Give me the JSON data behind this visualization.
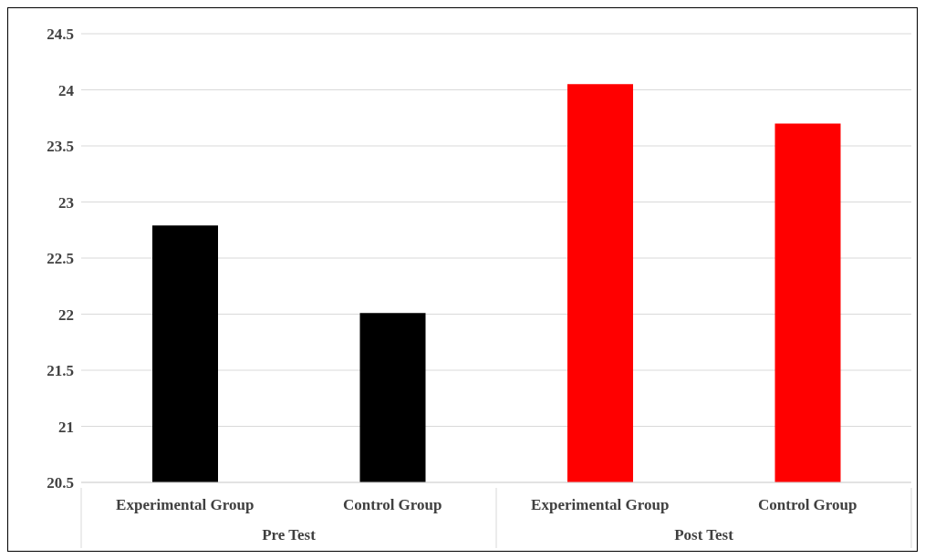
{
  "chart_data": {
    "type": "bar",
    "categories": [
      "Experimental Group",
      "Control Group",
      "Experimental Group",
      "Control Group"
    ],
    "values": [
      22.79,
      22.01,
      24.05,
      23.7
    ],
    "colors": [
      "#000000",
      "#000000",
      "#ff0000",
      "#ff0000"
    ],
    "ylim": [
      20.5,
      24.5
    ],
    "yticks": [
      20.5,
      21,
      21.5,
      22,
      22.5,
      23,
      23.5,
      24,
      24.5
    ],
    "grid": "y",
    "annotations": [
      "Pre Test",
      "Post Test"
    ]
  }
}
